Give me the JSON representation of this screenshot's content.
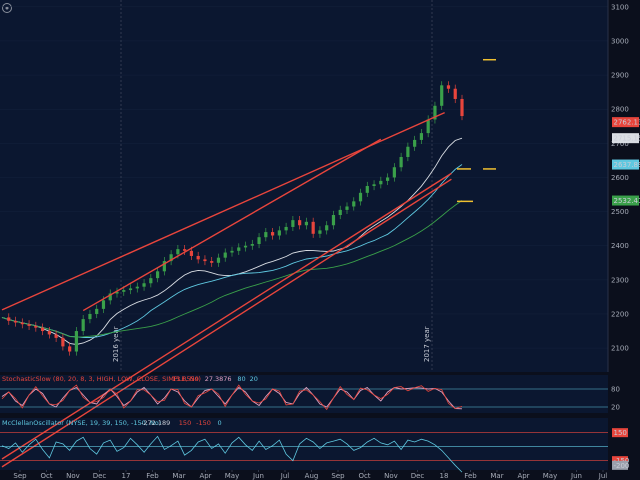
{
  "chart_data": [
    {
      "type": "line",
      "panel": "price",
      "ylim": [
        2030,
        3120
      ],
      "y_ticks": [
        "3100",
        "3000",
        "2900",
        "2800",
        "2700",
        "2600",
        "2500",
        "2400",
        "2300",
        "2200",
        "2100"
      ],
      "x_ticks": [
        "Sep",
        "Oct",
        "Nov",
        "Dec",
        "17",
        "Feb",
        "Mar",
        "Apr",
        "May",
        "Jun",
        "Jul",
        "Aug",
        "Sep",
        "Oct",
        "Nov",
        "Dec",
        "18",
        "Feb",
        "Mar",
        "Apr",
        "May",
        "Jun",
        "Jul"
      ],
      "year_markers": [
        "2016 year",
        "2017 year"
      ],
      "price_labels": [
        {
          "text": "2762.13",
          "value": 2762.13,
          "color": "#e8453c"
        },
        {
          "text": "2715.15",
          "value": 2715.15,
          "color": "#d9dde3"
        },
        {
          "text": "2637.89",
          "value": 2637.89,
          "color": "#5fc8e0"
        },
        {
          "text": "2532.41",
          "value": 2532.41,
          "color": "#3aa04a"
        }
      ],
      "close_series": [
        2190,
        2180,
        2175,
        2170,
        2165,
        2160,
        2150,
        2140,
        2130,
        2105,
        2090,
        2150,
        2185,
        2200,
        2215,
        2240,
        2260,
        2265,
        2270,
        2275,
        2280,
        2290,
        2305,
        2325,
        2355,
        2375,
        2390,
        2385,
        2370,
        2360,
        2355,
        2350,
        2365,
        2380,
        2385,
        2395,
        2400,
        2405,
        2425,
        2440,
        2430,
        2445,
        2455,
        2475,
        2460,
        2470,
        2435,
        2445,
        2460,
        2490,
        2505,
        2515,
        2530,
        2555,
        2575,
        2580,
        2590,
        2600,
        2630,
        2660,
        2690,
        2710,
        2730,
        2770,
        2810,
        2870,
        2860,
        2830,
        2780
      ],
      "ma_series": [
        {
          "color": "#d9dde3",
          "last": 2715.15
        },
        {
          "color": "#5fc8e0",
          "last": 2637.89
        },
        {
          "color": "#3aa04a",
          "last": 2532.41
        }
      ],
      "trend_lines": [
        {
          "name": "channel-upper",
          "from": [
            0,
            2212
          ],
          "to": [
            61,
            2790
          ],
          "color": "#e8453c"
        },
        {
          "name": "channel-lower",
          "from": [
            12,
            2210
          ],
          "to": [
            56,
            2712
          ],
          "color": "#e8453c"
        },
        {
          "name": "support-1",
          "from": [
            0,
            1775
          ],
          "to": [
            62,
            2612
          ],
          "color": "#e8453c"
        },
        {
          "name": "support-2",
          "from": [
            0,
            1752
          ],
          "to": [
            62,
            2595
          ],
          "color": "#e8453c"
        }
      ],
      "target_marks": [
        {
          "value": 2945,
          "color": "#f0c030"
        },
        {
          "value": 2625,
          "color": "#f0c030"
        },
        {
          "value": 2625,
          "color": "#f0c030"
        },
        {
          "value": 2530,
          "color": "#f0c030"
        }
      ]
    },
    {
      "type": "line",
      "panel": "stochastic",
      "title": "StochasticSlow (80, 20, 8, 3, HIGH, LOW, CLOSE, SIMPLE, No)",
      "readouts": [
        {
          "text": "13.8559",
          "color": "#e8453c"
        },
        {
          "text": "27.3876",
          "color": "#e0a0c0"
        },
        {
          "text": "80",
          "color": "#5fc8e0"
        },
        {
          "text": "20",
          "color": "#5fc8e0"
        }
      ],
      "ylim": [
        0,
        100
      ],
      "y_ticks": [
        "80",
        "20"
      ],
      "levels": [
        80,
        20
      ],
      "values": [
        55,
        70,
        40,
        25,
        60,
        80,
        65,
        30,
        20,
        50,
        75,
        85,
        60,
        35,
        30,
        60,
        80,
        55,
        25,
        40,
        70,
        85,
        60,
        30,
        50,
        80,
        70,
        40,
        20,
        50,
        75,
        80,
        55,
        30,
        60,
        85,
        70,
        40,
        25,
        55,
        80,
        65,
        35,
        30,
        65,
        85,
        60,
        30,
        20,
        50,
        80,
        70,
        45,
        75,
        85,
        60,
        40,
        70,
        85,
        80,
        82,
        84,
        83,
        80,
        82,
        70,
        40,
        15,
        14
      ]
    },
    {
      "type": "line",
      "panel": "mcclellan",
      "title": "McClellanOscillator (NYSE, 19, 39, 150, -150, No)",
      "readouts": [
        {
          "text": "-272.189",
          "color": "#c8ccd6"
        },
        {
          "text": "150",
          "color": "#e8453c"
        },
        {
          "text": "-150",
          "color": "#e8453c"
        },
        {
          "text": "0",
          "color": "#5fc8e0"
        }
      ],
      "ylim": [
        -250,
        200
      ],
      "y_ticks": [
        "150",
        "-150",
        "-200"
      ],
      "right_labels": [
        {
          "text": "150",
          "value": 150,
          "color": "#e8453c"
        },
        {
          "text": "-150",
          "value": -150,
          "color": "#e8453c"
        },
        {
          "text": "-200",
          "value": -200,
          "color": "#9aa0ac"
        }
      ],
      "levels": [
        150,
        -150,
        0
      ],
      "values": [
        10,
        -20,
        40,
        -60,
        20,
        80,
        -30,
        -120,
        50,
        30,
        -40,
        60,
        100,
        -20,
        -80,
        40,
        70,
        -50,
        -10,
        90,
        20,
        -60,
        30,
        110,
        -30,
        10,
        60,
        -90,
        -40,
        50,
        80,
        -20,
        30,
        -70,
        40,
        100,
        20,
        -40,
        60,
        -30,
        10,
        70,
        -80,
        -150,
        30,
        90,
        50,
        -20,
        40,
        60,
        80,
        30,
        -40,
        -10,
        50,
        90,
        40,
        20,
        60,
        -30,
        70,
        50,
        80,
        60,
        20,
        -40,
        -120,
        -200,
        -272
      ]
    }
  ]
}
